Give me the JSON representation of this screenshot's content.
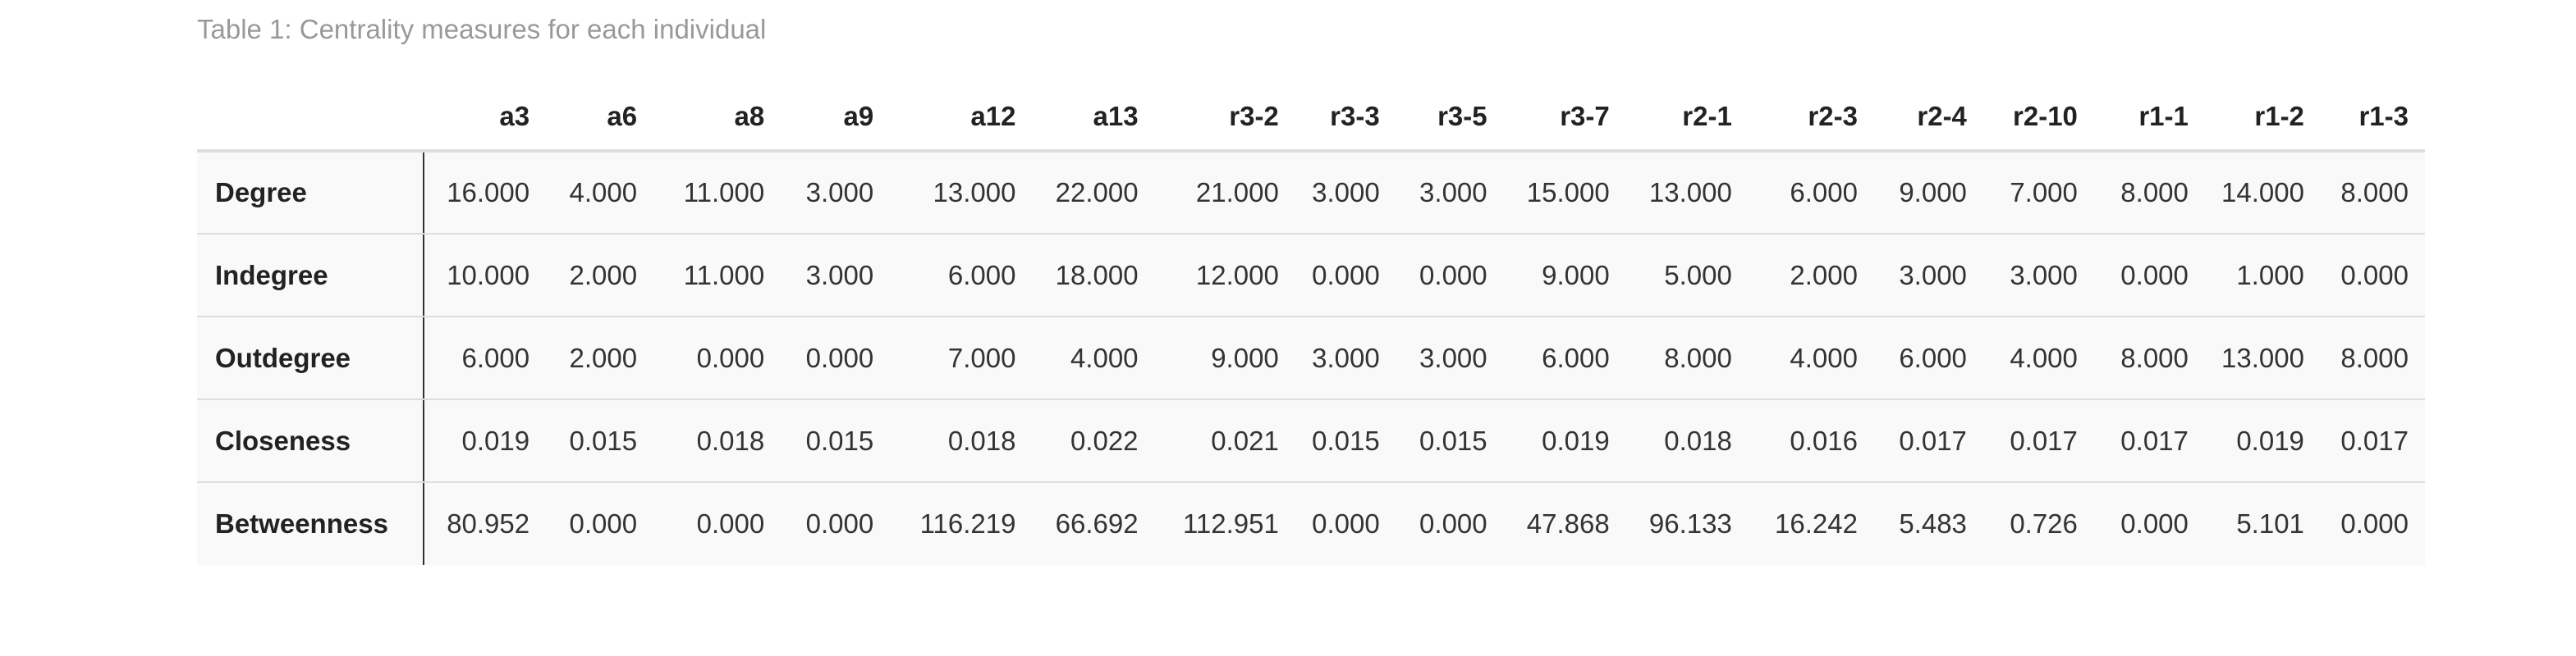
{
  "caption": "Table 1: Centrality measures for each individual",
  "table": {
    "columns": [
      "a3",
      "a6",
      "a8",
      "a9",
      "a12",
      "a13",
      "r3-2",
      "r3-3",
      "r3-5",
      "r3-7",
      "r2-1",
      "r2-3",
      "r2-4",
      "r2-10",
      "r1-1",
      "r1-2",
      "r1-3"
    ],
    "rows": [
      {
        "label": "Degree",
        "cells": [
          "16.000",
          "4.000",
          "11.000",
          "3.000",
          "13.000",
          "22.000",
          "21.000",
          "3.000",
          "3.000",
          "15.000",
          "13.000",
          "6.000",
          "9.000",
          "7.000",
          "8.000",
          "14.000",
          "8.000"
        ]
      },
      {
        "label": "Indegree",
        "cells": [
          "10.000",
          "2.000",
          "11.000",
          "3.000",
          "6.000",
          "18.000",
          "12.000",
          "0.000",
          "0.000",
          "9.000",
          "5.000",
          "2.000",
          "3.000",
          "3.000",
          "0.000",
          "1.000",
          "0.000"
        ]
      },
      {
        "label": "Outdegree",
        "cells": [
          "6.000",
          "2.000",
          "0.000",
          "0.000",
          "7.000",
          "4.000",
          "9.000",
          "3.000",
          "3.000",
          "6.000",
          "8.000",
          "4.000",
          "6.000",
          "4.000",
          "8.000",
          "13.000",
          "8.000"
        ]
      },
      {
        "label": "Closeness",
        "cells": [
          "0.019",
          "0.015",
          "0.018",
          "0.015",
          "0.018",
          "0.022",
          "0.021",
          "0.015",
          "0.015",
          "0.019",
          "0.018",
          "0.016",
          "0.017",
          "0.017",
          "0.017",
          "0.019",
          "0.017"
        ]
      },
      {
        "label": "Betweenness",
        "cells": [
          "80.952",
          "0.000",
          "0.000",
          "0.000",
          "116.219",
          "66.692",
          "112.951",
          "0.000",
          "0.000",
          "47.868",
          "96.133",
          "16.242",
          "5.483",
          "0.726",
          "0.000",
          "5.101",
          "0.000"
        ]
      }
    ]
  }
}
